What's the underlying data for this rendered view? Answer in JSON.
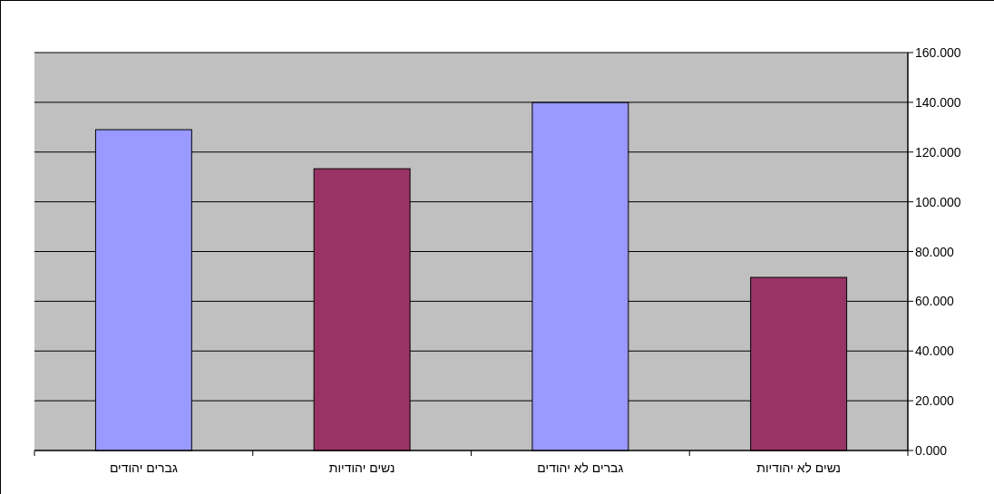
{
  "chart_data": {
    "type": "bar",
    "categories": [
      "גברים יהודים",
      "נשים יהודיות",
      "גברים לא יהודים",
      "נשים לא יהודיות"
    ],
    "values": [
      129.0,
      113.3,
      139.9,
      69.6
    ],
    "colors": [
      "#9999ff",
      "#993366",
      "#9999ff",
      "#993366"
    ],
    "ylim": [
      0,
      160
    ],
    "yticks": [
      {
        "value": 0,
        "label": "0.000"
      },
      {
        "value": 20,
        "label": "20.000"
      },
      {
        "value": 40,
        "label": "40.000"
      },
      {
        "value": 60,
        "label": "60.000"
      },
      {
        "value": 80,
        "label": "80.000"
      },
      {
        "value": 100,
        "label": "100.000"
      },
      {
        "value": 120,
        "label": "120.000"
      },
      {
        "value": 140,
        "label": "140.000"
      },
      {
        "value": 160,
        "label": "160.000"
      }
    ],
    "grid": "y"
  }
}
